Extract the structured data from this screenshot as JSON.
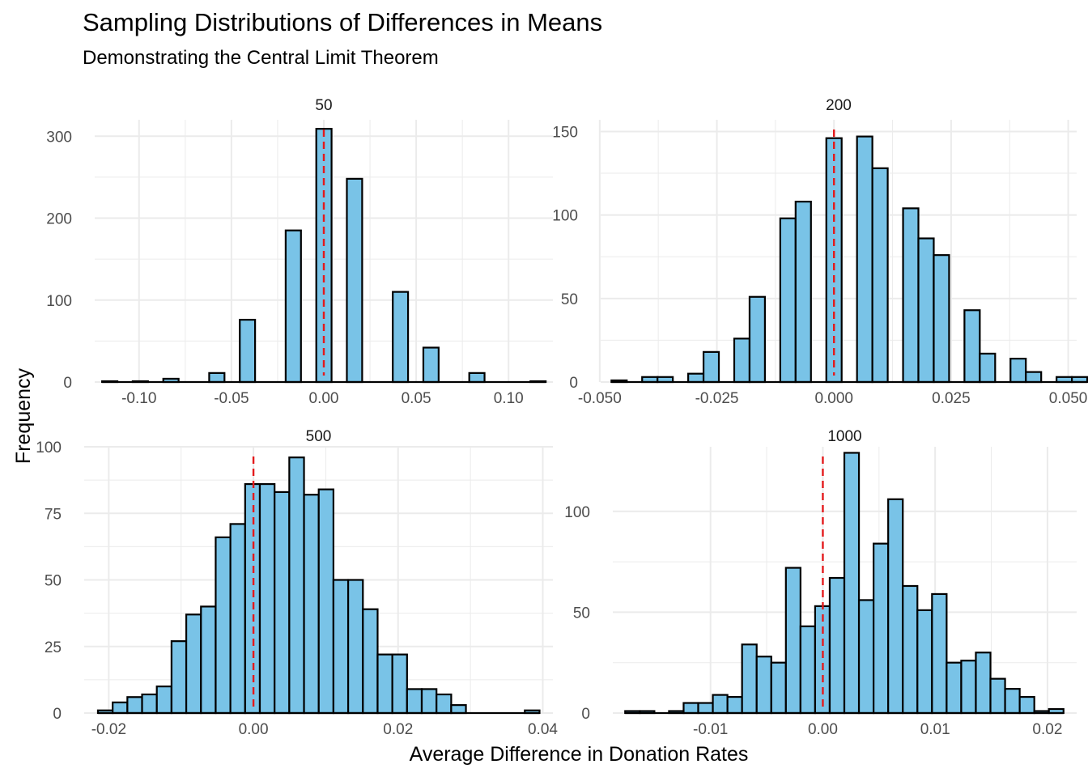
{
  "title": "Sampling Distributions of Differences in Means",
  "subtitle": "Demonstrating the Central Limit Theorem",
  "colors": {
    "bar_fill": "#79C3E7",
    "bar_stroke": "#000000",
    "ref_line": "#E31A1C",
    "grid": "#EBEBEB"
  },
  "chart_data": {
    "type": "bar",
    "xlabel": "Average Difference in Donation Rates",
    "ylabel": "Frequency",
    "grid": true,
    "reference_line": {
      "x": 0,
      "style": "dashed",
      "color": "red"
    },
    "panels": [
      {
        "label": "50",
        "xlim": [
          -0.124,
          0.124
        ],
        "ylim": [
          0,
          320
        ],
        "xticks": [
          -0.1,
          -0.05,
          0,
          0.05,
          0.1
        ],
        "xtick_labels": [
          "-0.10",
          "-0.05",
          "0.00",
          "0.05",
          "0.10"
        ],
        "yticks": [
          0,
          100,
          200,
          300
        ],
        "ytick_labels": [
          "0",
          "100",
          "200",
          "300"
        ],
        "bin_start": -0.12,
        "bin_width": 0.00828,
        "values": [
          1,
          0,
          1,
          0,
          4,
          0,
          0,
          11,
          0,
          76,
          0,
          0,
          185,
          0,
          309,
          0,
          248,
          0,
          0,
          110,
          0,
          42,
          0,
          0,
          11,
          0,
          0,
          0,
          1
        ]
      },
      {
        "label": "200",
        "xlim": [
          -0.0498,
          0.0518
        ],
        "ylim": [
          0,
          157
        ],
        "xticks": [
          -0.05,
          -0.025,
          0,
          0.025,
          0.05
        ],
        "xtick_labels": [
          "-0.050",
          "-0.025",
          "0.000",
          "0.025",
          "0.050"
        ],
        "yticks": [
          0,
          50,
          100,
          150
        ],
        "ytick_labels": [
          "0",
          "50",
          "100",
          "150"
        ],
        "bin_start": -0.0475,
        "bin_width": 0.003276,
        "values": [
          1,
          0,
          3,
          3,
          0,
          5,
          18,
          0,
          26,
          51,
          0,
          98,
          108,
          0,
          146,
          0,
          147,
          128,
          0,
          104,
          86,
          76,
          0,
          43,
          17,
          0,
          14,
          6,
          0,
          3,
          3
        ]
      },
      {
        "label": "500",
        "xlim": [
          -0.0234,
          0.0414
        ],
        "ylim": [
          0,
          100
        ],
        "xticks": [
          -0.02,
          0,
          0.02,
          0.04
        ],
        "xtick_labels": [
          "-0.02",
          "0.00",
          "0.02",
          "0.04"
        ],
        "yticks": [
          0,
          25,
          50,
          75,
          100
        ],
        "ytick_labels": [
          "0",
          "25",
          "50",
          "75",
          "100"
        ],
        "bin_start": -0.0215,
        "bin_width": 0.002035,
        "values": [
          1,
          4,
          6,
          7,
          10,
          27,
          37,
          40,
          66,
          71,
          86,
          86,
          83,
          96,
          82,
          84,
          50,
          50,
          39,
          22,
          22,
          9,
          9,
          7,
          3,
          0,
          0,
          0,
          0,
          1
        ]
      },
      {
        "label": "1000",
        "xlim": [
          -0.0187,
          0.0226
        ],
        "ylim": [
          0,
          132
        ],
        "xticks": [
          -0.01,
          0,
          0.01,
          0.02
        ],
        "xtick_labels": [
          "-0.01",
          "0.00",
          "0.01",
          "0.02"
        ],
        "yticks": [
          0,
          50,
          100
        ],
        "ytick_labels": [
          "0",
          "50",
          "100"
        ],
        "bin_start": -0.0176,
        "bin_width": 0.001301,
        "values": [
          1,
          1,
          0,
          1,
          5,
          5,
          9,
          8,
          34,
          28,
          25,
          72,
          43,
          53,
          67,
          129,
          56,
          84,
          106,
          63,
          51,
          59,
          25,
          26,
          30,
          17,
          12,
          8,
          1,
          2
        ]
      }
    ]
  }
}
